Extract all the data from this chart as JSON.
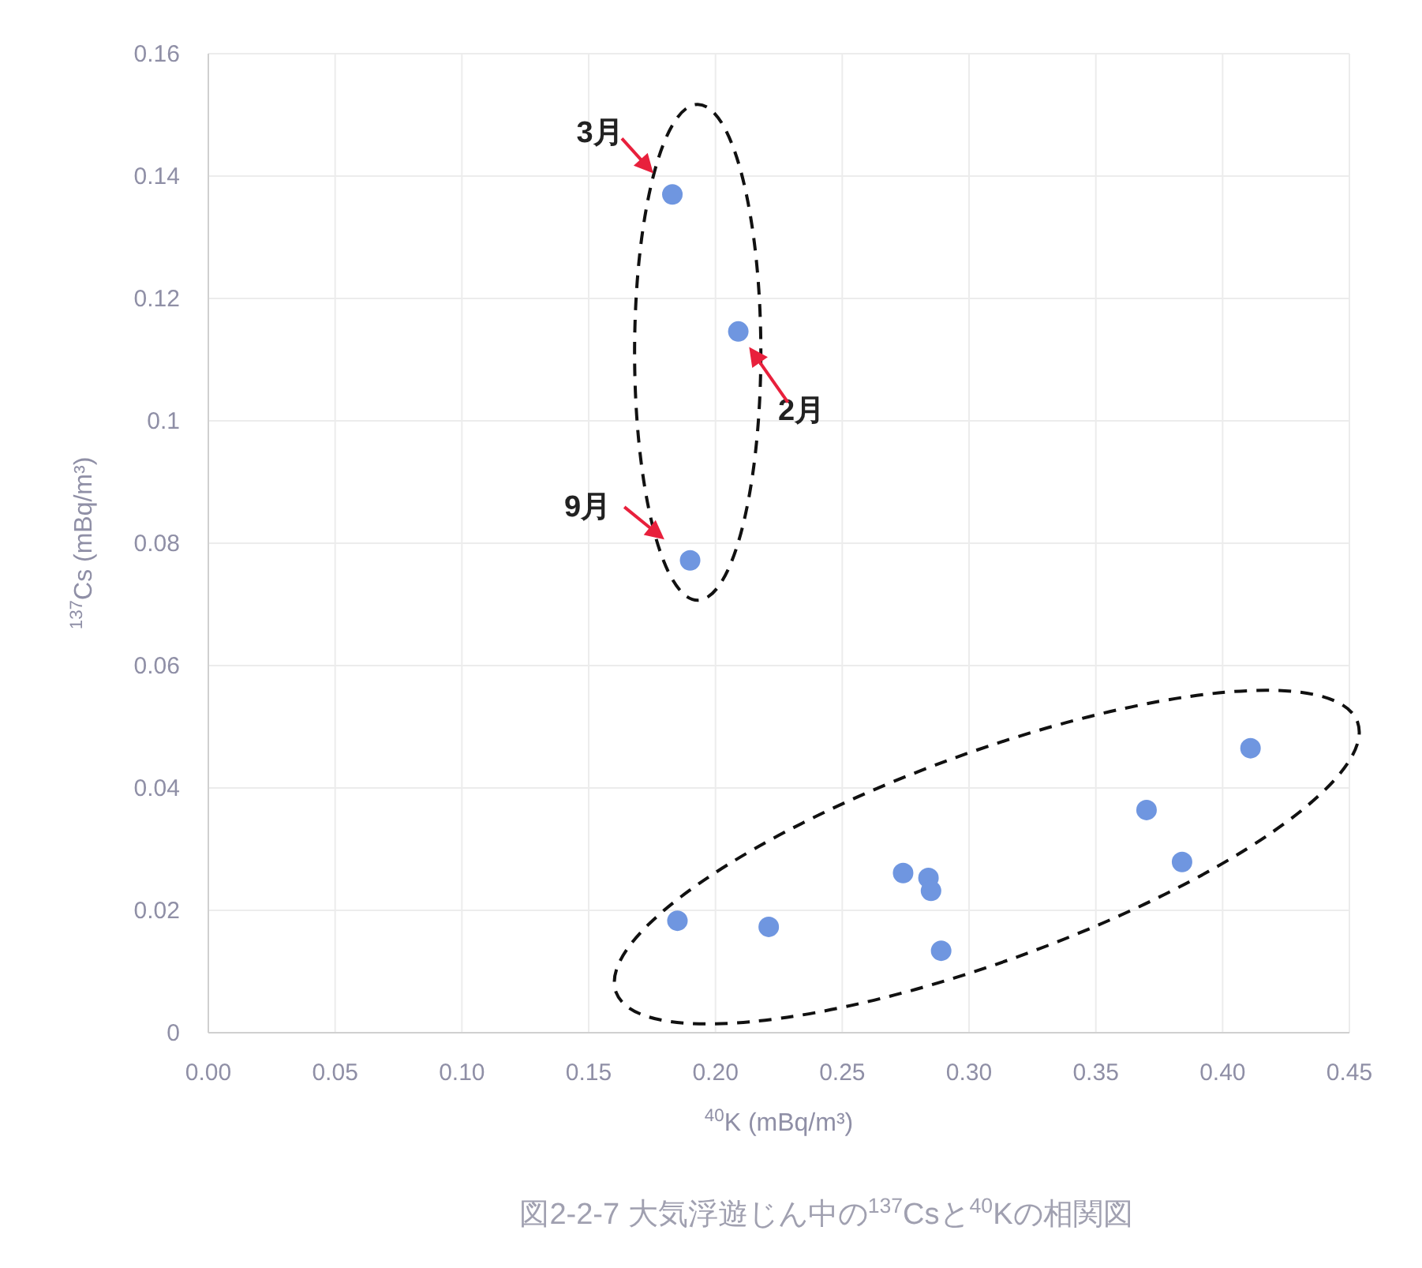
{
  "chart_data": {
    "type": "scatter",
    "title": "図2-2-7  大気浮遊じん中の$^{137}$Csと$^{40}$Kの相関図",
    "xlabel": "$^{40}$K (mBq/m³)",
    "ylabel": "$^{137}$Cs (mBq/m³)",
    "xlim": [
      0,
      0.45
    ],
    "xticks": [
      {
        "value": 0,
        "label": "0.00"
      },
      0.05,
      {
        "value": 0.1,
        "label": "0.10"
      },
      0.15,
      {
        "value": 0.2,
        "label": "0.20"
      },
      0.25,
      {
        "value": 0.3,
        "label": "0.30"
      },
      0.35,
      {
        "value": 0.4,
        "label": "0.40"
      },
      0.45
    ],
    "ylim": [
      0,
      0.16
    ],
    "yticks": [
      0,
      0.02,
      0.04,
      0.06,
      0.08,
      0.1,
      0.12,
      0.14,
      0.16
    ],
    "grid": true,
    "marker": "circle",
    "series": [
      {
        "color": "#6f96e0",
        "x": [
          0.183,
          0.209,
          0.19,
          0.185,
          0.221,
          0.274,
          0.284,
          0.285,
          0.289,
          0.37,
          0.384,
          0.411
        ],
        "values": [
          0.137,
          0.1146,
          0.0772,
          0.0183,
          0.0173,
          0.0261,
          0.0253,
          0.0232,
          0.0134,
          0.0364,
          0.0279,
          0.0465
        ]
      }
    ],
    "annotations": [
      {
        "text": "3月",
        "x": 0.183,
        "y": 0.137
      },
      {
        "text": "2月",
        "x": 0.209,
        "y": 0.1146
      },
      {
        "text": "9月",
        "x": 0.19,
        "y": 0.0772
      }
    ]
  }
}
